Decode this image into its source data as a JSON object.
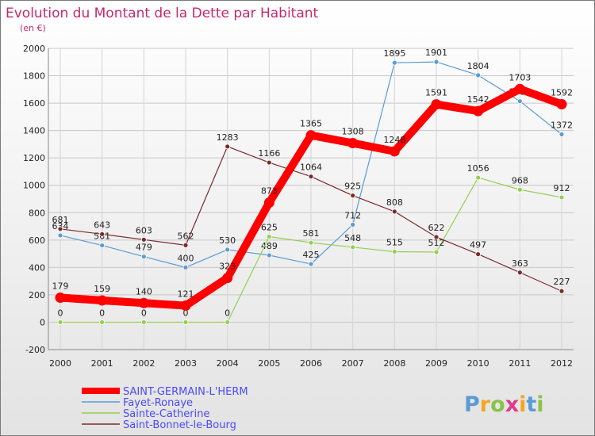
{
  "chart_data": {
    "type": "line",
    "title": "Evolution du Montant de la Dette par Habitant",
    "subtitle": "(en €)",
    "categories": [
      "2000",
      "2001",
      "2002",
      "2003",
      "2004",
      "2005",
      "2006",
      "2007",
      "2008",
      "2009",
      "2010",
      "2011",
      "2012"
    ],
    "ylim": [
      -200,
      2000
    ],
    "yticks": [
      -200,
      0,
      200,
      400,
      600,
      800,
      1000,
      1200,
      1400,
      1600,
      1800,
      2000
    ],
    "grid": true,
    "legend_position": "bottom-left",
    "series": [
      {
        "name": "SAINT-GERMAIN-L'HERM",
        "color": "#ff0000",
        "values": [
          179,
          159,
          140,
          121,
          323,
          873,
          1365,
          1308,
          1248,
          1591,
          1542,
          1703,
          1592
        ],
        "labels": [
          "179",
          "159",
          "140",
          "121",
          "323",
          "873",
          "1365",
          "1308",
          "1248",
          "1591",
          "1542",
          "1703",
          "1592"
        ]
      },
      {
        "name": "Fayet-Ronaye",
        "color": "#5b9bd5",
        "values": [
          634,
          561,
          479,
          400,
          530,
          489,
          425,
          712,
          1895,
          1901,
          1804,
          1614,
          1372
        ],
        "labels": [
          "634",
          "561",
          "479",
          "400",
          "530",
          "489",
          "425",
          "712",
          "1895",
          "1901",
          "1804",
          "1614",
          "1372"
        ]
      },
      {
        "name": "Sainte-Catherine",
        "color": "#92d050",
        "values": [
          0,
          0,
          0,
          0,
          0,
          625,
          581,
          548,
          515,
          512,
          1056,
          968,
          912
        ],
        "labels": [
          "0",
          "0",
          "0",
          "0",
          "0",
          "625",
          "581",
          "548",
          "515",
          "512",
          "1056",
          "968",
          "912"
        ]
      },
      {
        "name": "Saint-Bonnet-le-Bourg",
        "color": "#7b2a2a",
        "values": [
          681,
          643,
          603,
          562,
          1283,
          1166,
          1064,
          925,
          808,
          622,
          497,
          363,
          227
        ],
        "labels": [
          "681",
          "643",
          "603",
          "562",
          "1283",
          "1166",
          "1064",
          "925",
          "808",
          "622",
          "497",
          "363",
          "227"
        ]
      }
    ]
  },
  "logo": {
    "text": "Proxiti",
    "letters": [
      "P",
      "r",
      "o",
      "x",
      "i",
      "t",
      "i"
    ],
    "letter_colors": [
      "#5b9bd5",
      "#f5a623",
      "#8bc34a",
      "#e03a8f",
      "#f5a623",
      "#5b9bd5",
      "#8bc34a"
    ]
  }
}
